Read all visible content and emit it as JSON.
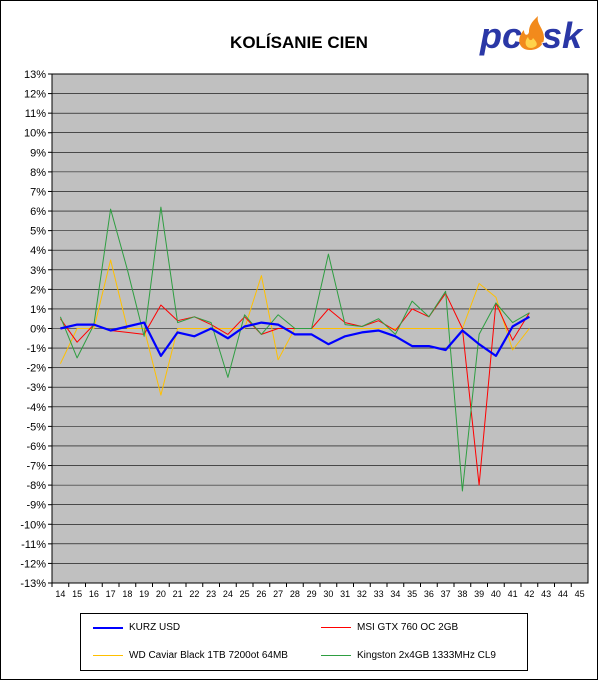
{
  "title": "KOLÍSANIE CIEN",
  "logo": {
    "text_left": "pc",
    "text_right": "sk",
    "icon": "flame-icon",
    "color": "#2a37a6",
    "flame_color": "#f28a1c"
  },
  "chart_data": {
    "type": "line",
    "title": "KOLÍSANIE CIEN",
    "x": [
      14,
      15,
      16,
      17,
      18,
      19,
      20,
      21,
      22,
      23,
      24,
      25,
      26,
      27,
      28,
      29,
      30,
      31,
      32,
      33,
      34,
      35,
      36,
      37,
      38,
      39,
      40,
      41,
      42,
      43,
      44,
      45
    ],
    "x_tick_labels": [
      "14",
      "15",
      "16",
      "17",
      "18",
      "19",
      "20",
      "21",
      "22",
      "23",
      "24",
      "25",
      "26",
      "27",
      "28",
      "29",
      "30",
      "31",
      "32",
      "33",
      "34",
      "35",
      "36",
      "37",
      "38",
      "39",
      "40",
      "41",
      "42",
      "43",
      "44",
      "45"
    ],
    "ylim": [
      -13,
      13
    ],
    "y_ticks": [
      13,
      12,
      11,
      10,
      9,
      8,
      7,
      6,
      5,
      4,
      3,
      2,
      1,
      0,
      -1,
      -2,
      -3,
      -4,
      -5,
      -6,
      -7,
      -8,
      -9,
      -10,
      -11,
      -12,
      -13
    ],
    "y_tick_labels": [
      "13%",
      "12%",
      "11%",
      "10%",
      "9%",
      "8%",
      "7%",
      "6%",
      "5%",
      "4%",
      "3%",
      "2%",
      "1%",
      "0%",
      "-1%",
      "-2%",
      "-3%",
      "-4%",
      "-5%",
      "-6%",
      "-7%",
      "-8%",
      "-9%",
      "-10%",
      "-11%",
      "-12%",
      "-13%"
    ],
    "grid": true,
    "plot_background": "#c0c0c0",
    "legend_position": "bottom",
    "series": [
      {
        "name": "KURZ USD",
        "color": "#0000ff",
        "width": 2.2,
        "x": [
          14,
          15,
          16,
          17,
          18,
          19,
          20,
          21,
          22,
          23,
          24,
          25,
          26,
          27,
          28,
          29,
          30,
          31,
          32,
          33,
          34,
          35,
          36,
          37,
          38,
          39,
          40,
          41,
          42
        ],
        "values": [
          0.0,
          0.2,
          0.2,
          -0.1,
          0.1,
          0.3,
          -1.4,
          -0.2,
          -0.4,
          0.0,
          -0.5,
          0.1,
          0.3,
          0.2,
          -0.3,
          -0.3,
          -0.8,
          -0.4,
          -0.2,
          -0.1,
          -0.4,
          -0.9,
          -0.9,
          -1.1,
          -0.1,
          -0.8,
          -1.4,
          0.1,
          0.6
        ]
      },
      {
        "name": "MSI GTX 760 OC 2GB",
        "color": "#ff0000",
        "width": 1,
        "x": [
          14,
          15,
          16,
          17,
          18,
          19,
          20,
          21,
          22,
          23,
          24,
          25,
          26,
          27,
          28,
          29,
          30,
          31,
          32,
          33,
          34,
          35,
          36,
          37,
          38,
          39,
          40,
          41,
          42
        ],
        "values": [
          0.5,
          -0.7,
          0.2,
          -0.1,
          -0.2,
          -0.3,
          1.2,
          0.4,
          0.6,
          0.2,
          -0.3,
          0.6,
          -0.3,
          0.0,
          0.0,
          0.0,
          1.0,
          0.3,
          0.1,
          0.4,
          -0.1,
          1.0,
          0.6,
          1.8,
          0.0,
          -8.0,
          1.3,
          -0.6,
          0.8
        ]
      },
      {
        "name": "WD Caviar Black 1TB 7200ot 64MB",
        "color": "#ffc000",
        "width": 1,
        "x": [
          14,
          15,
          16,
          17,
          18,
          19,
          20,
          21,
          22,
          23,
          24,
          25,
          26,
          27,
          28,
          29,
          30,
          31,
          32,
          33,
          34,
          35,
          36,
          37,
          38,
          39,
          40,
          41,
          42
        ],
        "values": [
          -1.8,
          0.0,
          0.0,
          3.5,
          0.0,
          0.0,
          -3.4,
          0.0,
          0.0,
          0.0,
          0.0,
          0.0,
          2.7,
          -1.6,
          0.0,
          0.0,
          0.0,
          0.0,
          0.0,
          0.0,
          0.0,
          0.0,
          0.0,
          0.0,
          0.0,
          2.3,
          1.6,
          -1.1,
          0.0
        ]
      },
      {
        "name": "Kingston 2x4GB 1333MHz CL9",
        "color": "#2e9e41",
        "width": 1,
        "x": [
          14,
          15,
          16,
          17,
          18,
          19,
          20,
          21,
          22,
          23,
          24,
          25,
          26,
          27,
          28,
          29,
          30,
          31,
          32,
          33,
          34,
          35,
          36,
          37,
          38,
          39,
          40,
          41,
          42
        ],
        "values": [
          0.6,
          -1.5,
          0.2,
          6.1,
          3.0,
          -0.4,
          6.2,
          0.3,
          0.6,
          0.3,
          -2.5,
          0.7,
          -0.3,
          0.7,
          0.0,
          0.0,
          3.8,
          0.2,
          0.1,
          0.5,
          -0.3,
          1.4,
          0.6,
          1.9,
          -8.3,
          -0.3,
          1.3,
          0.3,
          0.8
        ]
      }
    ]
  }
}
